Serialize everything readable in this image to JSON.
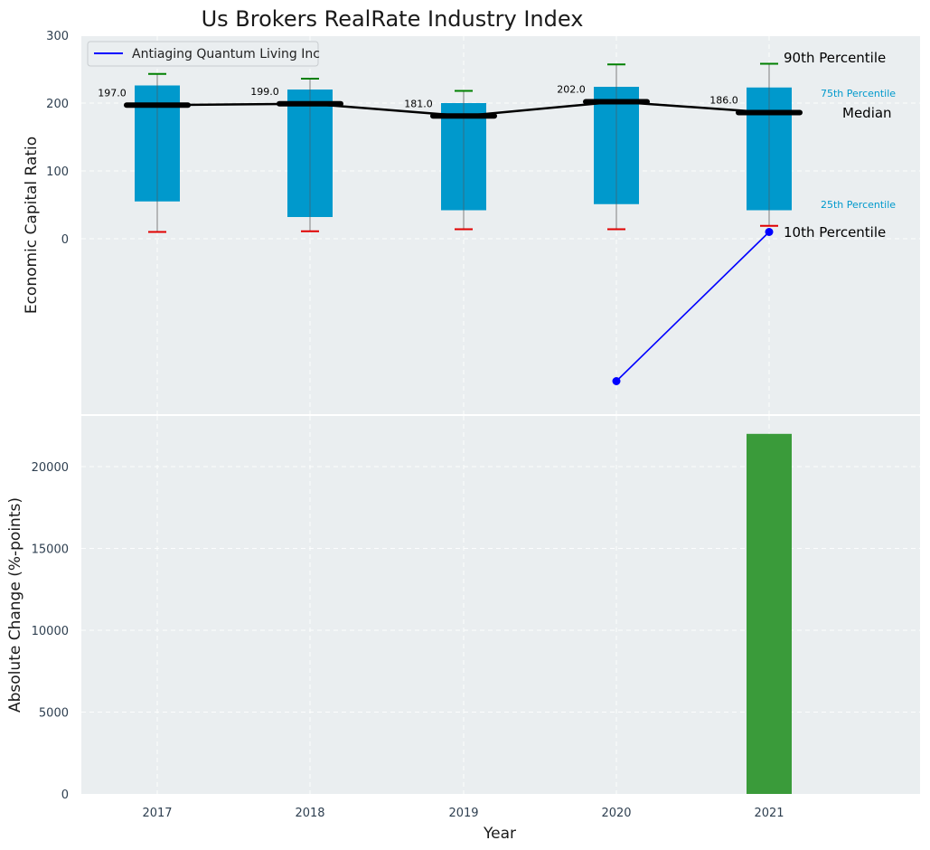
{
  "chart_data": [
    {
      "type": "box",
      "title": "Us Brokers RealRate Industry Index",
      "ylabel": "Economic Capital Ratio",
      "ylim": [
        -260,
        300
      ],
      "yticks": [
        0,
        100,
        200,
        300
      ],
      "categories": [
        "2017",
        "2018",
        "2019",
        "2020",
        "2021"
      ],
      "boxes": [
        {
          "year": "2017",
          "p10": 10,
          "q1": 55,
          "median": 197,
          "q3": 226,
          "p90": 243
        },
        {
          "year": "2018",
          "p10": 11,
          "q1": 32,
          "median": 199,
          "q3": 220,
          "p90": 236
        },
        {
          "year": "2019",
          "p10": 14,
          "q1": 42,
          "median": 181,
          "q3": 200,
          "p90": 218
        },
        {
          "year": "2020",
          "p10": 14,
          "q1": 51,
          "median": 202,
          "q3": 224,
          "p90": 257
        },
        {
          "year": "2021",
          "p10": 19,
          "q1": 42,
          "median": 186,
          "q3": 223,
          "p90": 258
        }
      ],
      "median_labels": [
        "197.0",
        "199.0",
        "181.0",
        "202.0",
        "186.0"
      ],
      "series": [
        {
          "name": "Antiaging Quantum Living Inc",
          "x": [
            "2020",
            "2021"
          ],
          "values": [
            -210,
            10
          ],
          "color": "#0000ff"
        }
      ],
      "legend": {
        "position": "top-left",
        "entries": [
          "Antiaging Quantum Living Inc"
        ]
      },
      "annotations": {
        "p90": "90th Percentile",
        "p75": "75th Percentile",
        "median": "Median",
        "p25": "25th Percentile",
        "p10": "10th Percentile"
      },
      "colors": {
        "box": "#0099cc",
        "median_line": "#000000",
        "p90_cap": "#008000",
        "p10_cap": "#e00000",
        "p75_text": "#0099cc",
        "p25_text": "#0099cc"
      },
      "grid": true
    },
    {
      "type": "bar",
      "xlabel": "Year",
      "ylabel": "Absolute Change (%-points)",
      "categories": [
        "2017",
        "2018",
        "2019",
        "2020",
        "2021"
      ],
      "values": [
        0,
        0,
        0,
        0,
        22000
      ],
      "ylim": [
        0,
        23000
      ],
      "yticks": [
        0,
        5000,
        10000,
        15000,
        20000
      ],
      "color": "#3a9b3a",
      "grid": true
    }
  ]
}
